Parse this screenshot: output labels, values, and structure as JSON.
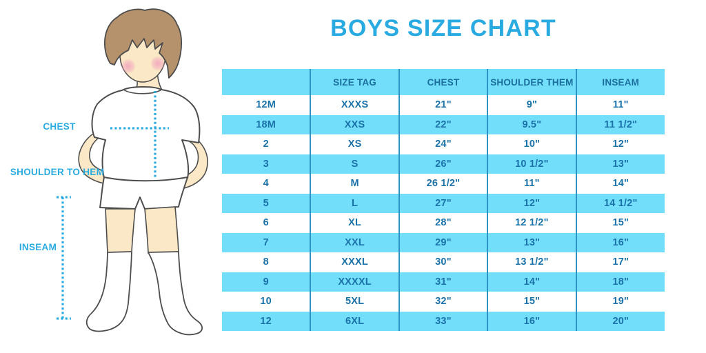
{
  "header": {
    "title": "BOYS SIZE CHART"
  },
  "figure": {
    "description": "cartoon boy with white t-shirt, shorts and knee socks, faceless, brown hair",
    "labels": {
      "chest": "CHEST",
      "shoulder_to_hem": "SHOULDER TO HEM",
      "inseam": "INSEAM"
    }
  },
  "colors": {
    "accent_blue": "#29ABE2",
    "table_fill": "#72DEFA",
    "table_text": "#1A72A8",
    "header_text": "#1B6F9E",
    "column_divider": "#2D93C4",
    "skin": "#FBE8C6",
    "hair": "#B6926C",
    "cheek": "#F2A8BE",
    "outline": "#4D4D4D"
  },
  "chart_data": {
    "type": "table",
    "title": "BOYS SIZE CHART",
    "columns": [
      "",
      "SIZE TAG",
      "CHEST",
      "SHOULDER THEM",
      "INSEAM"
    ],
    "rows": [
      [
        "12M",
        "XXXS",
        "21\"",
        "9\"",
        "11\""
      ],
      [
        "18M",
        "XXS",
        "22\"",
        "9.5\"",
        "11 1/2\""
      ],
      [
        "2",
        "XS",
        "24\"",
        "10\"",
        "12\""
      ],
      [
        "3",
        "S",
        "26\"",
        "10 1/2\"",
        "13\""
      ],
      [
        "4",
        "M",
        "26 1/2\"",
        "11\"",
        "14\""
      ],
      [
        "5",
        "L",
        "27\"",
        "12\"",
        "14 1/2\""
      ],
      [
        "6",
        "XL",
        "28\"",
        "12 1/2\"",
        "15\""
      ],
      [
        "7",
        "XXL",
        "29\"",
        "13\"",
        "16\""
      ],
      [
        "8",
        "XXXL",
        "30\"",
        "13 1/2\"",
        "17\""
      ],
      [
        "9",
        "XXXXL",
        "31\"",
        "14\"",
        "18\""
      ],
      [
        "10",
        "5XL",
        "32\"",
        "15\"",
        "19\""
      ],
      [
        "12",
        "6XL",
        "33\"",
        "16\"",
        "20\""
      ]
    ]
  }
}
